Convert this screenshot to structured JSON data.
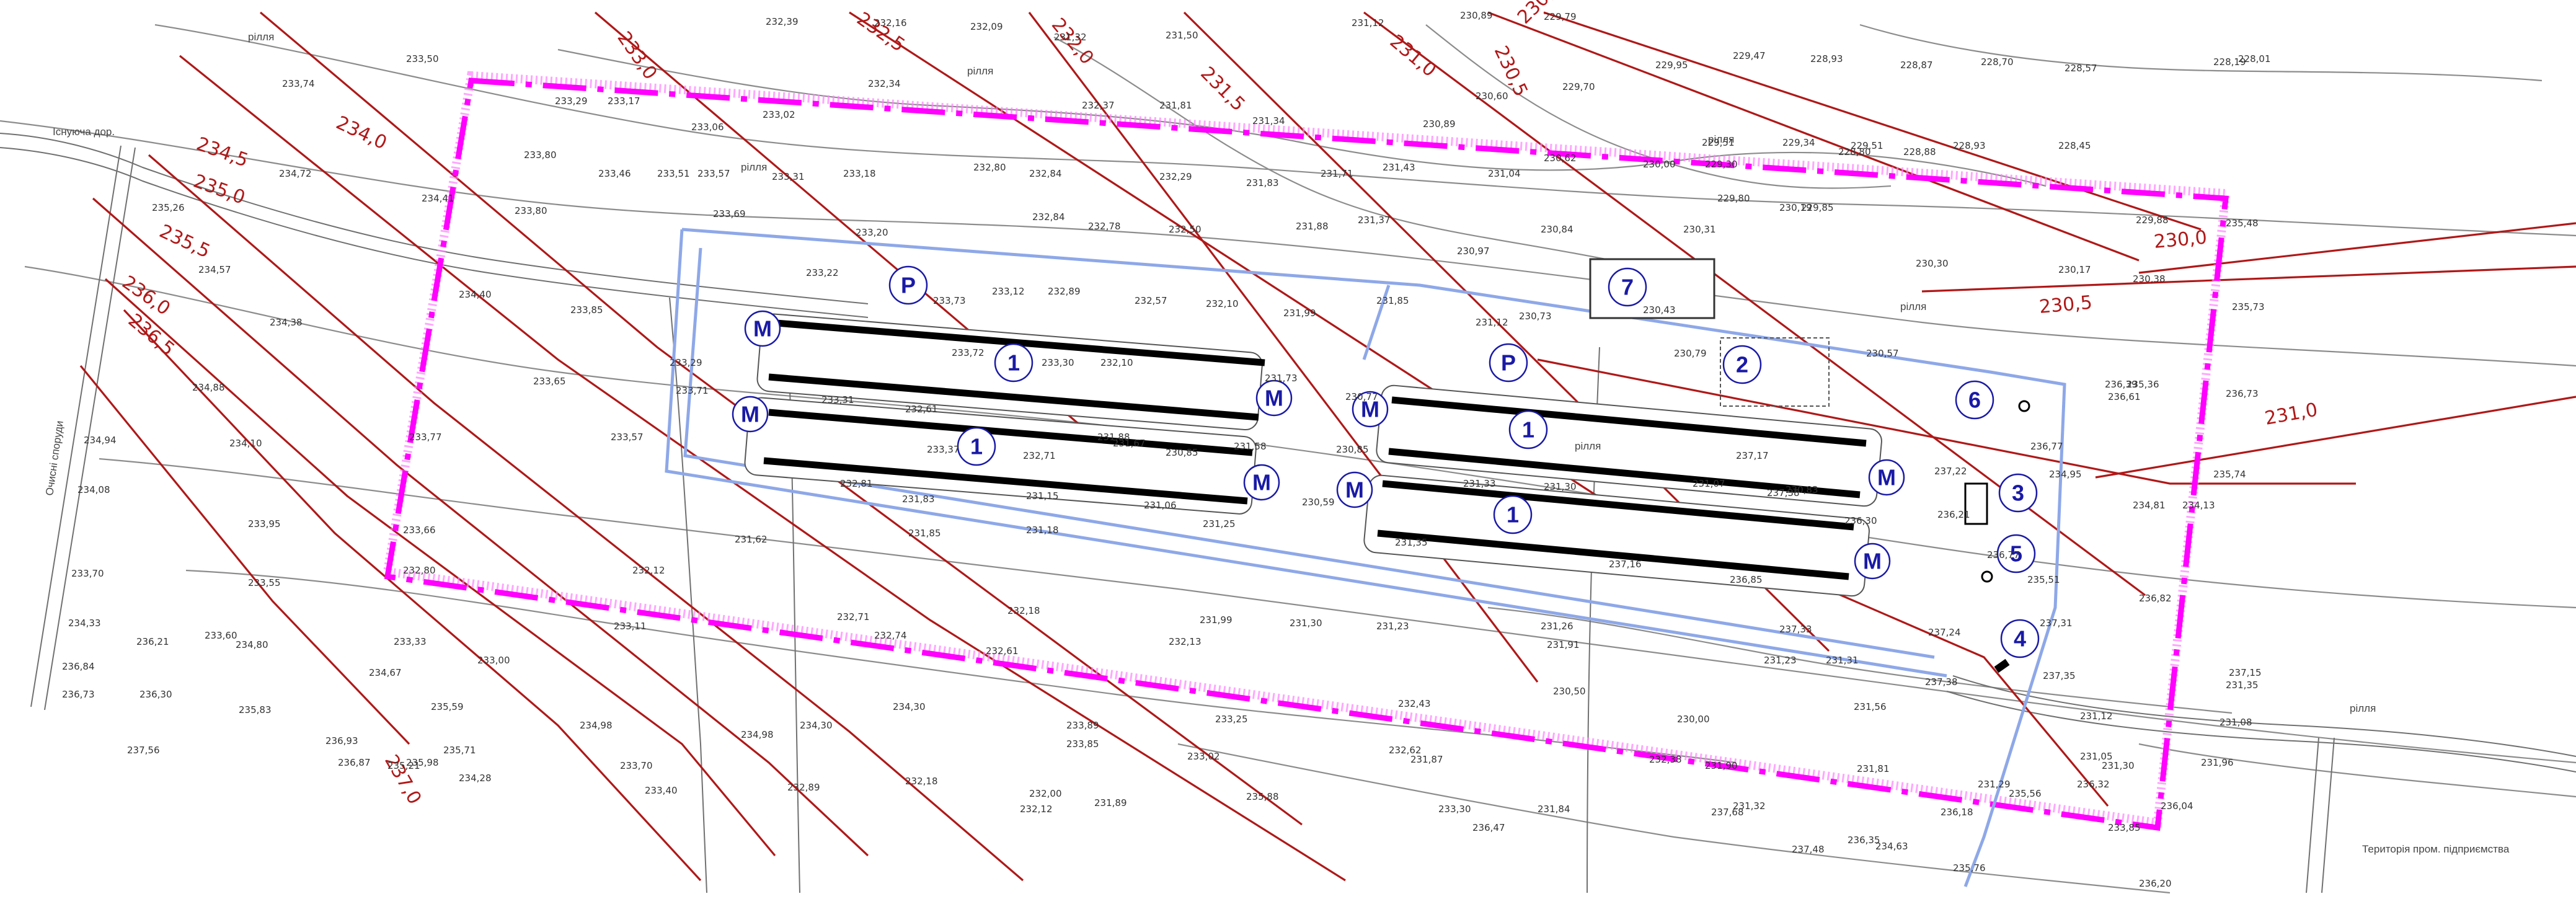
{
  "map": {
    "labels": {
      "field_a": "рілля",
      "field_b": "рілля",
      "field_c": "рілля",
      "field_d": "рілля",
      "field_e": "рілля",
      "field_f": "рілля",
      "field_g": "рілля",
      "treatment": "Очисні споруди",
      "road_top": "Існуюча дор.",
      "territory": "Територія пром. підприємства"
    },
    "isolines": [
      {
        "label": "233,0"
      },
      {
        "label": "232,5"
      },
      {
        "label": "232,0"
      },
      {
        "label": "231,5"
      },
      {
        "label": "231,0"
      },
      {
        "label": "230,5"
      },
      {
        "label": "230,0"
      },
      {
        "label": "234,0"
      },
      {
        "label": "234,5"
      },
      {
        "label": "235,0"
      },
      {
        "label": "235,5"
      },
      {
        "label": "236,0"
      },
      {
        "label": "236,5"
      },
      {
        "label": "237,0"
      },
      {
        "label": "230,0"
      },
      {
        "label": "230,5"
      },
      {
        "label": "231,0"
      }
    ],
    "markers": {
      "m1": "1",
      "m2": "1",
      "m3": "1",
      "m4": "1",
      "m5": "2",
      "m6": "3",
      "m7": "4",
      "m8": "5",
      "m9": "6",
      "m10": "7",
      "p1": "P",
      "p2": "P",
      "mm": "M"
    },
    "spot_heights": {
      "s1": "232,39",
      "s2": "232,16",
      "s3": "232,09",
      "s4": "231,32",
      "s5": "231,50",
      "s6": "231,12",
      "s7": "230,89",
      "s8": "229,79",
      "s9": "229,95",
      "s10": "229,47",
      "s11": "228,93",
      "s12": "228,87",
      "s13": "228,70",
      "s14": "228,57",
      "s15": "228,19",
      "s16": "228,01",
      "s17": "233,74",
      "s18": "233,50",
      "s19": "233,29",
      "s20": "233,17",
      "s21": "233,06",
      "s22": "233,02",
      "s23": "232,34",
      "s24": "232,37",
      "s25": "231,81",
      "s26": "231,34",
      "s27": "230,89",
      "s28": "230,60",
      "s29": "229,70",
      "s30": "229,51",
      "s31": "229,34",
      "s32": "229,51",
      "s33": "228,93",
      "s34": "228,45",
      "s35": "234,72",
      "s36": "233,80",
      "s37": "233,46",
      "s38": "233,51",
      "s39": "233,57",
      "s40": "233,31",
      "s41": "233,18",
      "s42": "232,80",
      "s43": "232,84",
      "s44": "232,29",
      "s45": "231,83",
      "s46": "231,71",
      "s47": "231,43",
      "s48": "231,04",
      "s49": "230,62",
      "s50": "230,00",
      "s51": "229,30",
      "s52": "228,80",
      "s53": "228,88",
      "s54": "235,26",
      "s55": "234,41",
      "s56": "233,80",
      "s57": "233,69",
      "s58": "233,20",
      "s59": "232,84",
      "s60": "232,78",
      "s61": "232,50",
      "s62": "231,88",
      "s63": "231,37",
      "s64": "230,97",
      "s65": "230,84",
      "s66": "230,31",
      "s67": "230,19",
      "s68": "229,80",
      "s69": "229,85",
      "s70": "229,88",
      "s71": "235,48",
      "s72": "234,57",
      "s73": "234,40",
      "s74": "233,85",
      "s75": "233,22",
      "s76": "233,12",
      "s77": "232,89",
      "s78": "232,57",
      "s79": "232,10",
      "s80": "231,99",
      "s81": "231,85",
      "s82": "231,12",
      "s83": "230,73",
      "s84": "230,43",
      "s85": "230,30",
      "s86": "230,17",
      "s87": "230,38",
      "s88": "235,73",
      "s89": "234,38",
      "s90": "233,29",
      "s91": "233,73",
      "s92": "233,72",
      "s93": "233,30",
      "s94": "232,10",
      "s95": "231,73",
      "s96": "230,77",
      "s97": "230,79",
      "s98": "230,57",
      "s99": "236,39",
      "s100": "235,36",
      "s101": "234,88",
      "s102": "233,65",
      "s103": "233,71",
      "s104": "233,31",
      "s105": "232,61",
      "s106": "231,88",
      "s107": "230,85",
      "s108": "230,85",
      "s109": "237,17",
      "s110": "236,61",
      "s111": "236,73",
      "s112": "234,94",
      "s113": "234,10",
      "s114": "233,77",
      "s115": "233,57",
      "s116": "233,37",
      "s117": "232,71",
      "s118": "231,67",
      "s119": "231,58",
      "s120": "231,33",
      "s121": "231,07",
      "s122": "230,83",
      "s123": "237,22",
      "s124": "236,77",
      "s125": "235,74",
      "s126": "234,08",
      "s127": "233,95",
      "s128": "233,66",
      "s129": "232,81",
      "s130": "231,83",
      "s131": "231,15",
      "s132": "231,06",
      "s133": "230,59",
      "s134": "231,30",
      "s135": "237,38",
      "s136": "236,30",
      "s137": "236,21",
      "s138": "234,95",
      "s139": "234,13",
      "s140": "233,70",
      "s141": "233,55",
      "s142": "232,80",
      "s143": "232,12",
      "s144": "231,62",
      "s145": "231,85",
      "s146": "231,18",
      "s147": "231,25",
      "s148": "231,35",
      "s149": "237,16",
      "s150": "236,85",
      "s151": "236,77",
      "s152": "235,51",
      "s153": "234,81",
      "s154": "234,33",
      "s155": "233,60",
      "s156": "233,33",
      "s157": "233,11",
      "s158": "232,71",
      "s159": "232,18",
      "s160": "231,99",
      "s161": "231,30",
      "s162": "231,23",
      "s163": "231,26",
      "s164": "237,33",
      "s165": "237,24",
      "s166": "237,31",
      "s167": "236,82",
      "s168": "236,84",
      "s169": "236,21",
      "s170": "234,80",
      "s171": "234,67",
      "s172": "233,00",
      "s173": "232,74",
      "s174": "232,61",
      "s175": "232,13",
      "s176": "231,91",
      "s177": "231,23",
      "s178": "231,31",
      "s179": "237,38",
      "s180": "237,35",
      "s181": "237,15",
      "s182": "236,73",
      "s183": "236,30",
      "s184": "235,83",
      "s185": "235,59",
      "s186": "234,98",
      "s187": "234,30",
      "s188": "233,89",
      "s189": "233,25",
      "s190": "232,43",
      "s191": "230,50",
      "s192": "230,00",
      "s193": "231,56",
      "s194": "231,12",
      "s195": "231,35",
      "s196": "237,56",
      "s197": "236,93",
      "s198": "236,87",
      "s199": "235,98",
      "s200": "235,71",
      "s201": "234,98",
      "s202": "234,30",
      "s203": "233,85",
      "s204": "233,02",
      "s205": "232,62",
      "s206": "232,38",
      "s207": "231,90",
      "s208": "231,05",
      "s209": "231,08",
      "s210": "235,21",
      "s211": "234,28",
      "s212": "233,70",
      "s213": "233,40",
      "s214": "232,89",
      "s215": "232,18",
      "s216": "232,00",
      "s217": "231,89",
      "s218": "231,87",
      "s219": "231,84",
      "s220": "231,32",
      "s221": "231,81",
      "s222": "231,29",
      "s223": "231,30",
      "s224": "231,96",
      "s225": "232,12",
      "s226": "235,88",
      "s227": "233,30",
      "s228": "236,47",
      "s229": "237,68",
      "s230": "237,48",
      "s231": "236,35",
      "s232": "236,18",
      "s233": "235,56",
      "s234": "236,32",
      "s235": "236,04",
      "s236": "233,85",
      "s237": "236,20",
      "s238": "235,76",
      "s239": "234,63"
    }
  }
}
